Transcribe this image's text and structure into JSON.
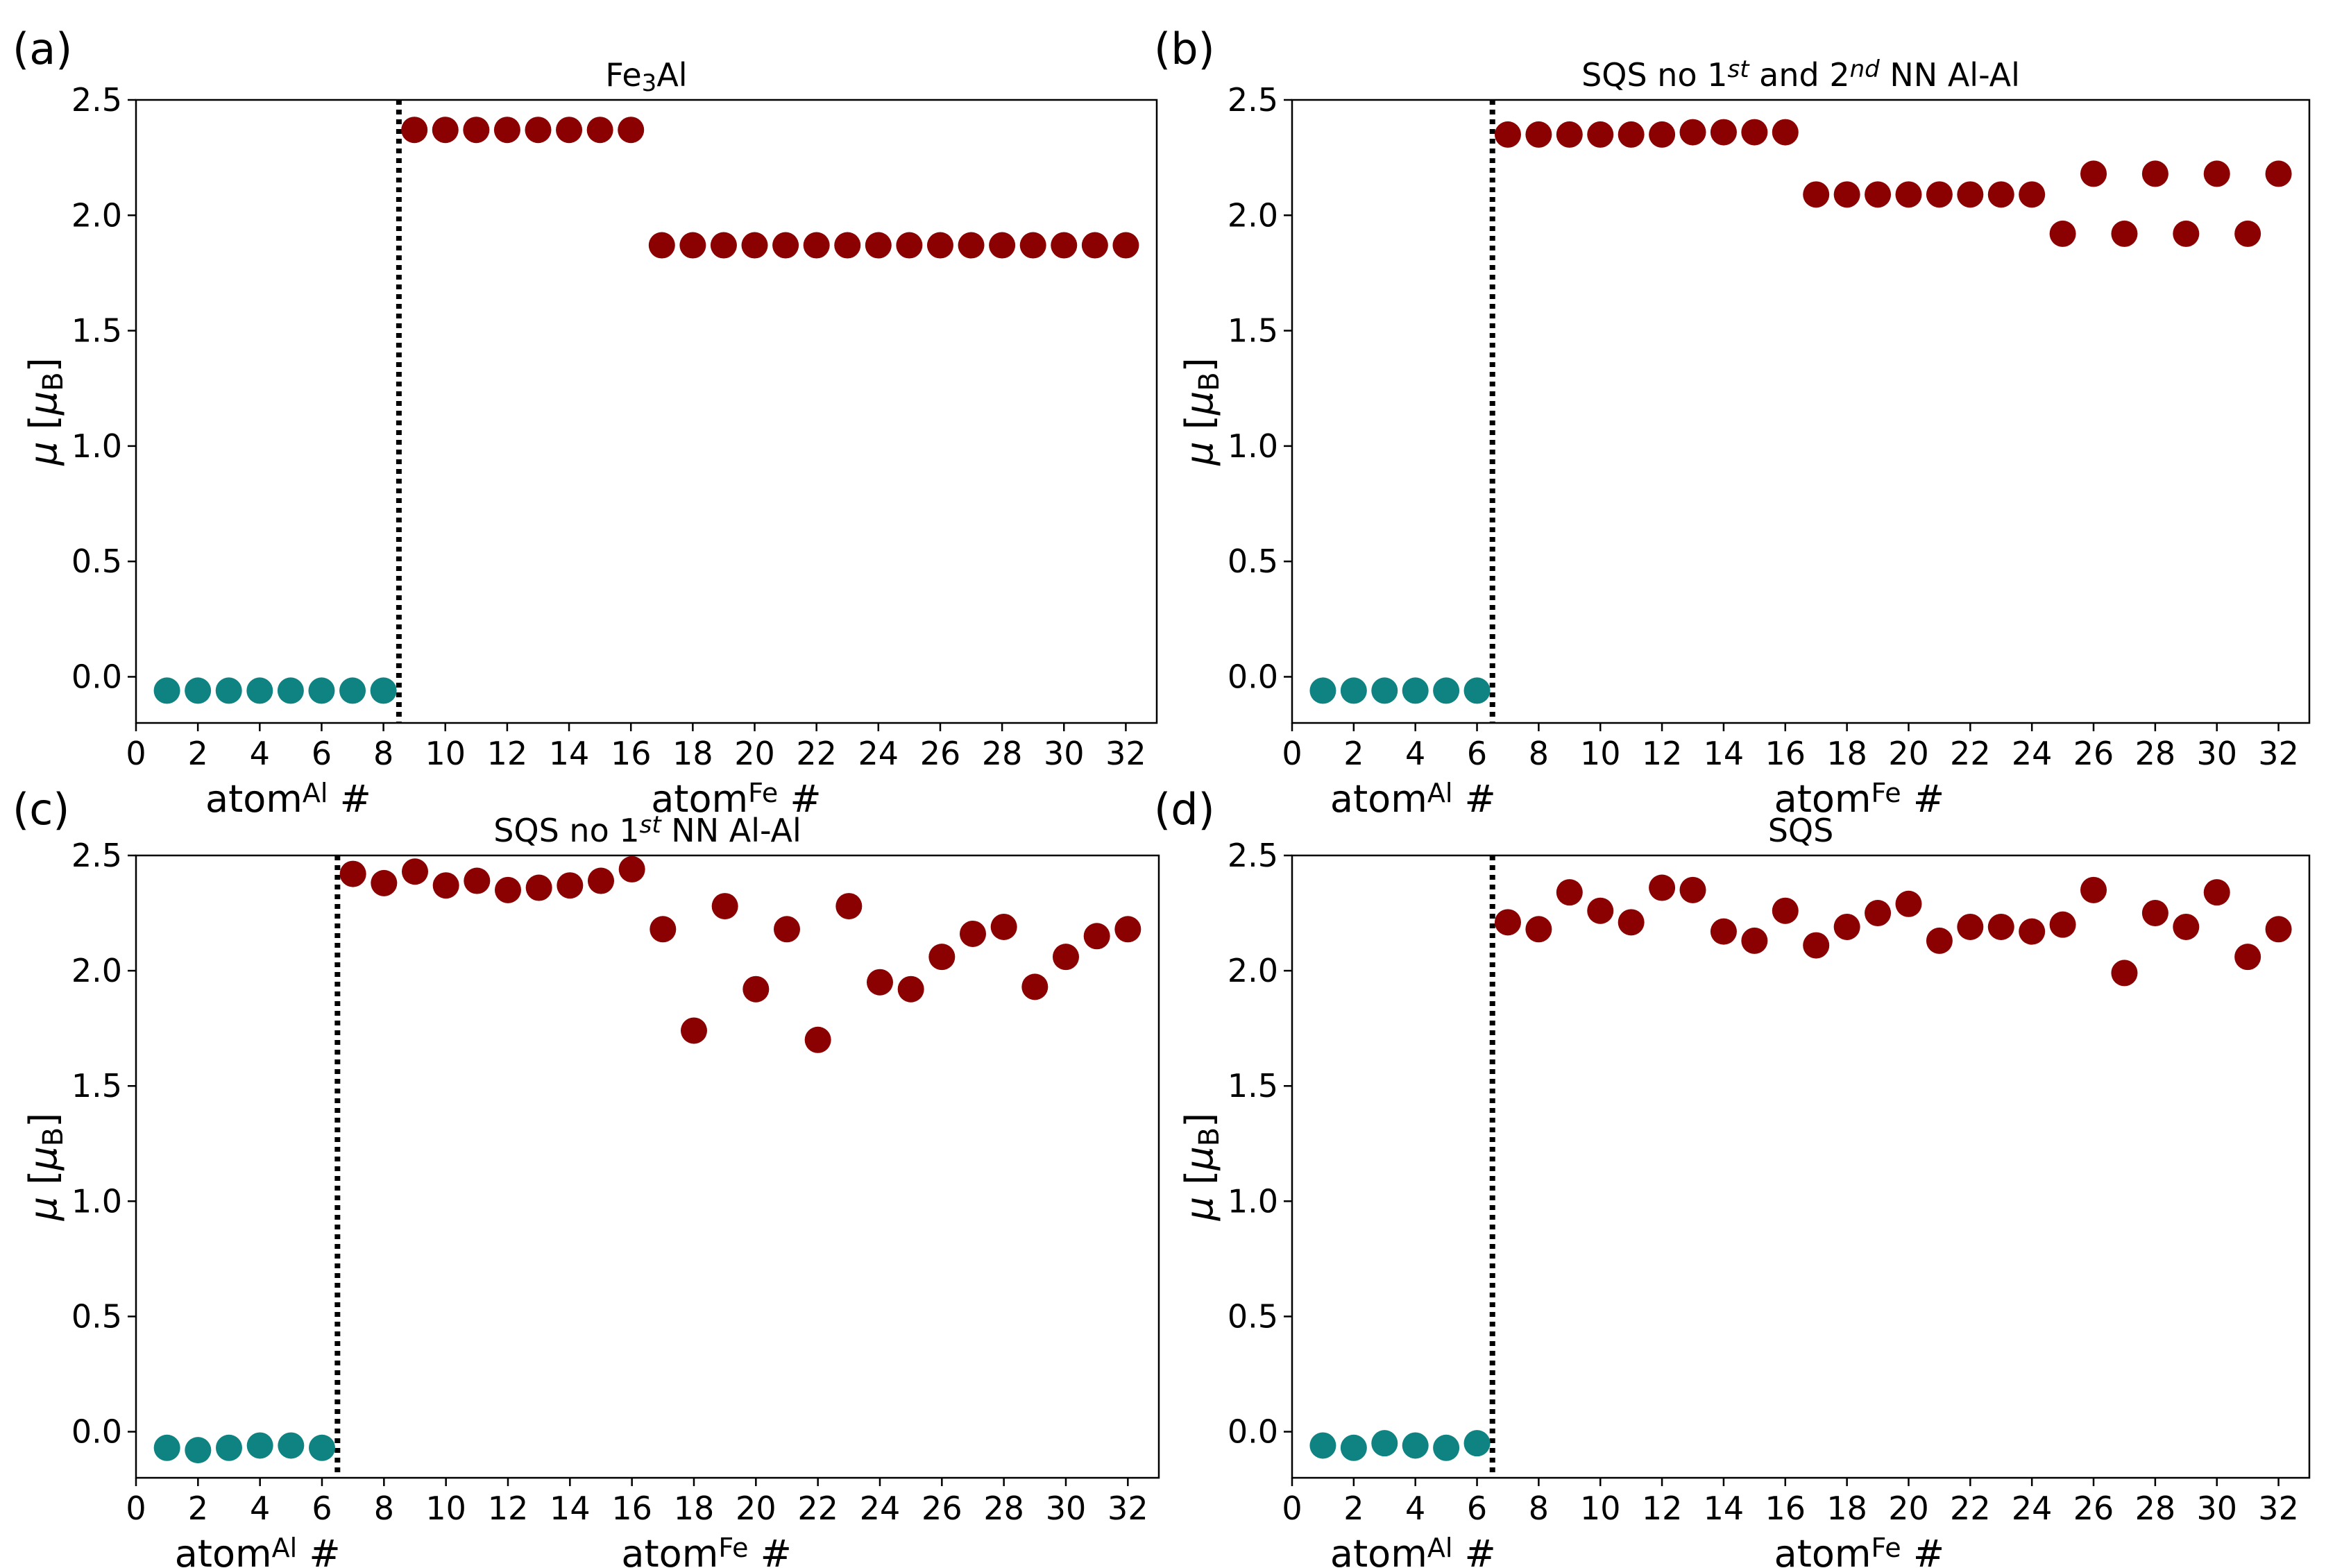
{
  "figure": {
    "colors": {
      "al": "#0f8282",
      "fe": "#8b0000",
      "axis": "#000000"
    },
    "y_axis": {
      "label_symbol": "μ",
      "label_unit_open": "[",
      "label_unit_symbol": "μ",
      "label_unit_sub": "B",
      "label_unit_close": "]",
      "ticks": [
        "0.0",
        "0.5",
        "1.0",
        "1.5",
        "2.0",
        "2.5"
      ]
    },
    "x_labels": {
      "al_base": "atom",
      "al_sup": "Al",
      "al_hash": "#",
      "fe_base": "atom",
      "fe_sup": "Fe",
      "fe_hash": "#"
    }
  },
  "chart_data": [
    {
      "panel": "(a)",
      "type": "scatter",
      "title": {
        "prefix": "Fe",
        "sub": "3",
        "suffix": "Al"
      },
      "xlim": [
        0,
        33
      ],
      "ylim": [
        -0.2,
        2.5
      ],
      "xticks": [
        "0",
        "2",
        "4",
        "6",
        "8",
        "10",
        "12",
        "14",
        "16",
        "18",
        "20",
        "22",
        "24",
        "26",
        "28",
        "30",
        "32"
      ],
      "divider_x": 8.5,
      "series": [
        {
          "name": "Al",
          "x": [
            1,
            2,
            3,
            4,
            5,
            6,
            7,
            8
          ],
          "values": [
            -0.06,
            -0.06,
            -0.06,
            -0.06,
            -0.06,
            -0.06,
            -0.06,
            -0.06
          ]
        },
        {
          "name": "Fe",
          "x": [
            9,
            10,
            11,
            12,
            13,
            14,
            15,
            16,
            17,
            18,
            19,
            20,
            21,
            22,
            23,
            24,
            25,
            26,
            27,
            28,
            29,
            30,
            31,
            32
          ],
          "values": [
            2.37,
            2.37,
            2.37,
            2.37,
            2.37,
            2.37,
            2.37,
            2.37,
            1.87,
            1.87,
            1.87,
            1.87,
            1.87,
            1.87,
            1.87,
            1.87,
            1.87,
            1.87,
            1.87,
            1.87,
            1.87,
            1.87,
            1.87,
            1.87
          ]
        }
      ]
    },
    {
      "panel": "(b)",
      "type": "scatter",
      "title": {
        "pre": "SQS no 1",
        "sup1": "st",
        "mid": " and 2",
        "sup2": "nd",
        "post": " NN Al-Al"
      },
      "xlim": [
        0,
        33
      ],
      "ylim": [
        -0.2,
        2.5
      ],
      "xticks": [
        "0",
        "2",
        "4",
        "6",
        "8",
        "10",
        "12",
        "14",
        "16",
        "18",
        "20",
        "22",
        "24",
        "26",
        "28",
        "30",
        "32"
      ],
      "divider_x": 6.5,
      "series": [
        {
          "name": "Al",
          "x": [
            1,
            2,
            3,
            4,
            5,
            6
          ],
          "values": [
            -0.06,
            -0.06,
            -0.06,
            -0.06,
            -0.06,
            -0.06
          ]
        },
        {
          "name": "Fe",
          "x": [
            7,
            8,
            9,
            10,
            11,
            12,
            13,
            14,
            15,
            16,
            17,
            18,
            19,
            20,
            21,
            22,
            23,
            24,
            25,
            26,
            27,
            28,
            29,
            30,
            31,
            32
          ],
          "values": [
            2.35,
            2.35,
            2.35,
            2.35,
            2.35,
            2.35,
            2.36,
            2.36,
            2.36,
            2.36,
            2.09,
            2.09,
            2.09,
            2.09,
            2.09,
            2.09,
            2.09,
            2.09,
            1.92,
            2.18,
            1.92,
            2.18,
            1.92,
            2.18,
            1.92,
            2.18
          ]
        }
      ]
    },
    {
      "panel": "(c)",
      "type": "scatter",
      "title": {
        "pre": "SQS no 1",
        "sup1": "st",
        "post": " NN Al-Al"
      },
      "xlim": [
        0,
        33
      ],
      "ylim": [
        -0.2,
        2.5
      ],
      "xticks": [
        "0",
        "2",
        "4",
        "6",
        "8",
        "10",
        "12",
        "14",
        "16",
        "18",
        "20",
        "22",
        "24",
        "26",
        "28",
        "30",
        "32"
      ],
      "divider_x": 6.5,
      "series": [
        {
          "name": "Al",
          "x": [
            1,
            2,
            3,
            4,
            5,
            6
          ],
          "values": [
            -0.07,
            -0.08,
            -0.07,
            -0.06,
            -0.06,
            -0.07
          ]
        },
        {
          "name": "Fe",
          "x": [
            7,
            8,
            9,
            10,
            11,
            12,
            13,
            14,
            15,
            16,
            17,
            18,
            19,
            20,
            21,
            22,
            23,
            24,
            25,
            26,
            27,
            28,
            29,
            30,
            31,
            32
          ],
          "values": [
            2.42,
            2.38,
            2.43,
            2.37,
            2.39,
            2.35,
            2.36,
            2.37,
            2.39,
            2.44,
            2.18,
            1.74,
            2.28,
            1.92,
            2.18,
            1.7,
            2.28,
            1.95,
            1.92,
            2.06,
            2.16,
            2.19,
            1.93,
            2.06,
            2.15,
            2.18
          ]
        }
      ]
    },
    {
      "panel": "(d)",
      "type": "scatter",
      "title": {
        "text": "SQS"
      },
      "xlim": [
        0,
        33
      ],
      "ylim": [
        -0.2,
        2.5
      ],
      "xticks": [
        "0",
        "2",
        "4",
        "6",
        "8",
        "10",
        "12",
        "14",
        "16",
        "18",
        "20",
        "22",
        "24",
        "26",
        "28",
        "30",
        "32"
      ],
      "divider_x": 6.5,
      "series": [
        {
          "name": "Al",
          "x": [
            1,
            2,
            3,
            4,
            5,
            6
          ],
          "values": [
            -0.06,
            -0.07,
            -0.05,
            -0.06,
            -0.07,
            -0.05
          ]
        },
        {
          "name": "Fe",
          "x": [
            7,
            8,
            9,
            10,
            11,
            12,
            13,
            14,
            15,
            16,
            17,
            18,
            19,
            20,
            21,
            22,
            23,
            24,
            25,
            26,
            27,
            28,
            29,
            30,
            31,
            32
          ],
          "values": [
            2.21,
            2.18,
            2.34,
            2.26,
            2.21,
            2.36,
            2.35,
            2.17,
            2.13,
            2.26,
            2.11,
            2.19,
            2.25,
            2.29,
            2.13,
            2.19,
            2.19,
            2.17,
            2.2,
            2.35,
            1.99,
            2.25,
            2.19,
            2.34,
            2.06,
            2.18
          ]
        }
      ]
    }
  ]
}
